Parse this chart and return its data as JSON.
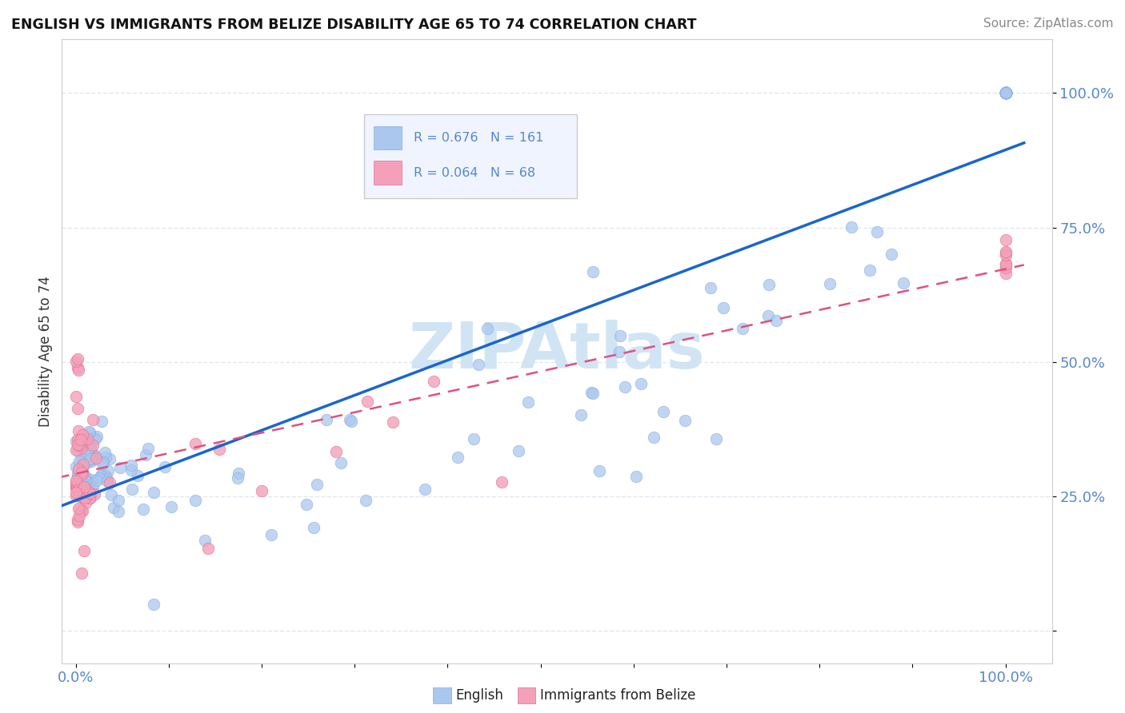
{
  "title": "ENGLISH VS IMMIGRANTS FROM BELIZE DISABILITY AGE 65 TO 74 CORRELATION CHART",
  "source": "Source: ZipAtlas.com",
  "ylabel": "Disability Age 65 to 74",
  "legend_english": "English",
  "legend_immigrants": "Immigrants from Belize",
  "r_english": 0.676,
  "n_english": 161,
  "r_immigrants": 0.064,
  "n_immigrants": 68,
  "english_color": "#aac8ee",
  "english_edge_color": "#88aadd",
  "immigrants_color": "#f4a0b8",
  "immigrants_edge_color": "#e07090",
  "english_line_color": "#1a66cc",
  "immigrants_line_color": "#e05080",
  "watermark_color": "#d0e4f4",
  "background_color": "#ffffff",
  "grid_color": "#e0e8f0",
  "tick_color": "#5588cc",
  "title_color": "#111111",
  "source_color": "#888888",
  "ylabel_color": "#333333",
  "legend_bg": "#f0f4ff",
  "legend_border": "#cccccc"
}
